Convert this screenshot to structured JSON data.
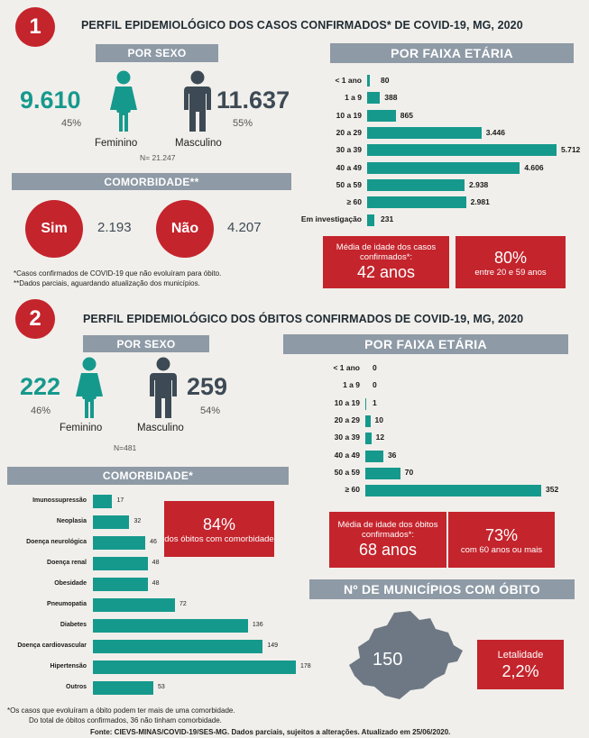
{
  "sec1": {
    "number": "1",
    "title": "PERFIL EPIDEMIOLÓGICO DOS CASOS CONFIRMADOS* DE COVID-19, MG, 2020",
    "sex_banner": "POR SEXO",
    "female_count": "9.610",
    "female_pct": "45%",
    "female_label": "Feminino",
    "male_count": "11.637",
    "male_pct": "55%",
    "male_label": "Masculino",
    "n_total": "N= 21.247",
    "comorb_banner": "COMORBIDADE**",
    "sim_label": "Sim",
    "sim_value": "2.193",
    "nao_label": "Não",
    "nao_value": "4.207",
    "note1": "*Casos confirmados de COVID-19 que não evoluíram para óbito.",
    "note2": "**Dados parciais, aguardando atualização dos municípios.",
    "age_banner": "POR FAIXA ETÁRIA",
    "avg_box": {
      "text": "Média de idade dos casos confirmados*:",
      "value": "42 anos"
    },
    "pct_box": {
      "value": "80%",
      "text": "entre 20 e 59 anos"
    }
  },
  "sec2": {
    "number": "2",
    "title": "PERFIL EPIDEMIOLÓGICO DOS ÓBITOS CONFIRMADOS DE COVID-19, MG, 2020",
    "sex_banner": "POR SEXO",
    "female_count": "222",
    "female_pct": "46%",
    "female_label": "Feminino",
    "male_count": "259",
    "male_pct": "54%",
    "male_label": "Masculino",
    "n_total": "N=481",
    "comorb_banner": "COMORBIDADE*",
    "comorb_box": {
      "value": "84%",
      "text": "dos óbitos com comorbidade"
    },
    "age_banner": "POR FAIXA ETÁRIA",
    "avg_box": {
      "text": "Média de idade dos óbitos confirmados*:",
      "value": "68 anos"
    },
    "pct_box": {
      "value": "73%",
      "text": "com 60 anos ou mais"
    },
    "muni_banner": "Nº DE MUNICÍPIOS COM ÓBITO",
    "muni_count": "150",
    "letal_box": {
      "text": "Letalidade",
      "value": "2,2%"
    },
    "note1": "*Os casos que evoluíram a óbito podem ter mais de uma comorbidade.",
    "note2": "Do total de óbitos confirmados, 36 não tinham comorbidade."
  },
  "footer": "Fonte: CIEVS-MINAS/COVID-19/SES-MG. Dados parciais, sujeitos a alterações. Atualizado em 25/06/2020.",
  "colors": {
    "teal": "#16998d",
    "red": "#c4242c",
    "gray_banner": "#8e9aa6",
    "dark_figure": "#3d4a55"
  },
  "chart_data": [
    {
      "type": "bar",
      "orientation": "horizontal",
      "categories": [
        "< 1 ano",
        "1 a 9",
        "10 a 19",
        "20 a 29",
        "30 a 39",
        "40 a 49",
        "50 a 59",
        "≥ 60",
        "Em investigação"
      ],
      "values": [
        80,
        388,
        865,
        3446,
        5712,
        4606,
        2938,
        2981,
        231
      ],
      "value_labels": [
        "80",
        "388",
        "865",
        "3.446",
        "5.712",
        "4.606",
        "2.938",
        "2.981",
        "231"
      ],
      "title": "POR FAIXA ETÁRIA",
      "xlim": [
        0,
        5712
      ]
    },
    {
      "type": "bar",
      "orientation": "horizontal",
      "categories": [
        "< 1 ano",
        "1 a 9",
        "10 a 19",
        "20 a 29",
        "30 a 39",
        "40 a 49",
        "50 a 59",
        "≥ 60"
      ],
      "values": [
        0,
        0,
        1,
        10,
        12,
        36,
        70,
        352
      ],
      "value_labels": [
        "0",
        "0",
        "1",
        "10",
        "12",
        "36",
        "70",
        "352"
      ],
      "title": "POR FAIXA ETÁRIA",
      "xlim": [
        0,
        352
      ]
    },
    {
      "type": "bar",
      "orientation": "horizontal",
      "categories": [
        "Imunossupressão",
        "Neoplasia",
        "Doença neurológica",
        "Doença renal",
        "Obesidade",
        "Pneumopatia",
        "Diabetes",
        "Doença cardiovascular",
        "Hipertensão",
        "Outros"
      ],
      "values": [
        17,
        32,
        46,
        48,
        48,
        72,
        136,
        149,
        178,
        53
      ],
      "value_labels": [
        "17",
        "32",
        "46",
        "48",
        "48",
        "72",
        "136",
        "149",
        "178",
        "53"
      ],
      "title": "COMORBIDADE*",
      "xlim": [
        0,
        178
      ]
    }
  ]
}
